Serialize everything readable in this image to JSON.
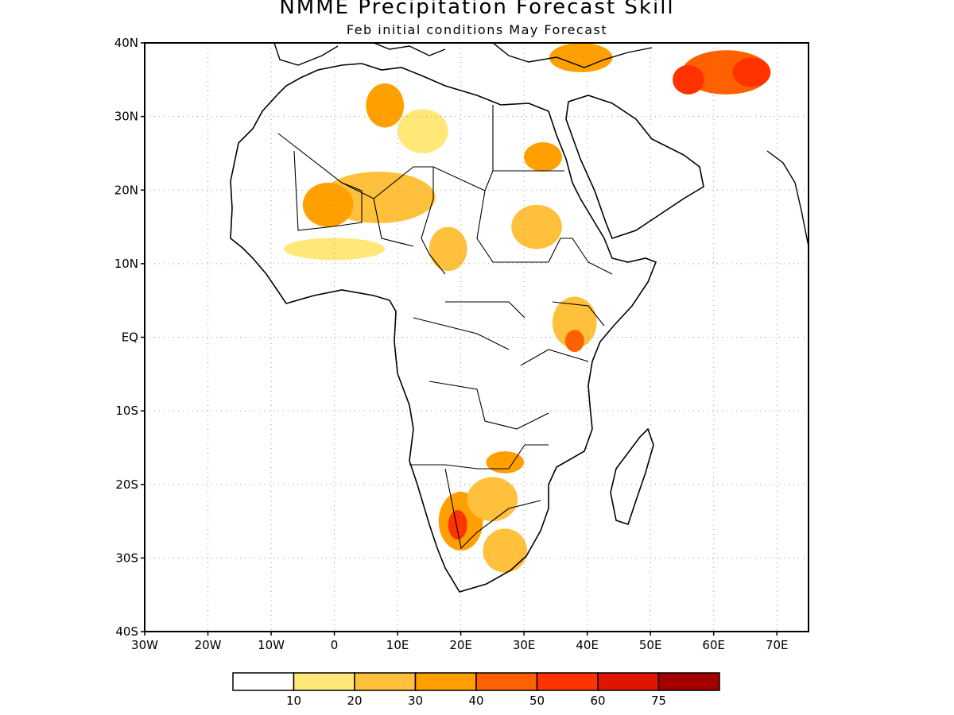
{
  "title": "NMME Precipitation Forecast Skill",
  "subtitle": "Feb initial conditions  May Forecast",
  "map": {
    "lon_range": [
      -30,
      75
    ],
    "lat_range": [
      -40,
      40
    ],
    "lat_ticks": [
      {
        "value": 40,
        "label": "40N"
      },
      {
        "value": 30,
        "label": "30N"
      },
      {
        "value": 20,
        "label": "20N"
      },
      {
        "value": 10,
        "label": "10N"
      },
      {
        "value": 0,
        "label": "EQ"
      },
      {
        "value": -10,
        "label": "10S"
      },
      {
        "value": -20,
        "label": "20S"
      },
      {
        "value": -30,
        "label": "30S"
      },
      {
        "value": -40,
        "label": "40S"
      }
    ],
    "lon_ticks": [
      {
        "value": -30,
        "label": "30W"
      },
      {
        "value": -20,
        "label": "20W"
      },
      {
        "value": -10,
        "label": "10W"
      },
      {
        "value": 0,
        "label": "0"
      },
      {
        "value": 10,
        "label": "10E"
      },
      {
        "value": 20,
        "label": "20E"
      },
      {
        "value": 30,
        "label": "30E"
      },
      {
        "value": 40,
        "label": "40E"
      },
      {
        "value": 50,
        "label": "50E"
      },
      {
        "value": 60,
        "label": "60E"
      },
      {
        "value": 70,
        "label": "70E"
      }
    ],
    "grid": true
  },
  "colorbar": {
    "colors": [
      "#ffffff",
      "#ffe878",
      "#ffc03c",
      "#ffa000",
      "#ff6000",
      "#ff3200",
      "#e11400",
      "#a50000"
    ],
    "labels": [
      "10",
      "20",
      "30",
      "40",
      "50",
      "60",
      "75"
    ]
  },
  "skill_regions": [
    {
      "lon": 7,
      "lat": 19,
      "rx": 9,
      "ry": 3.5,
      "level": 2
    },
    {
      "lon": -1,
      "lat": 18,
      "rx": 4,
      "ry": 3,
      "level": 3
    },
    {
      "lon": 8,
      "lat": 31.5,
      "rx": 3,
      "ry": 3,
      "level": 3
    },
    {
      "lon": 14,
      "lat": 28,
      "rx": 4,
      "ry": 3,
      "level": 1
    },
    {
      "lon": 33,
      "lat": 24.5,
      "rx": 3,
      "ry": 2,
      "level": 3
    },
    {
      "lon": 32,
      "lat": 15,
      "rx": 4,
      "ry": 3,
      "level": 2
    },
    {
      "lon": 18,
      "lat": 12,
      "rx": 3,
      "ry": 3,
      "level": 2
    },
    {
      "lon": 0,
      "lat": 12,
      "rx": 8,
      "ry": 1.5,
      "level": 1
    },
    {
      "lon": 62,
      "lat": 36,
      "rx": 7,
      "ry": 3,
      "level": 4
    },
    {
      "lon": 56,
      "lat": 35,
      "rx": 2.5,
      "ry": 2,
      "level": 5
    },
    {
      "lon": 66,
      "lat": 36,
      "rx": 3,
      "ry": 2,
      "level": 5
    },
    {
      "lon": 39,
      "lat": 38,
      "rx": 5,
      "ry": 2,
      "level": 3
    },
    {
      "lon": 38,
      "lat": 2,
      "rx": 3.5,
      "ry": 3.5,
      "level": 2
    },
    {
      "lon": 38,
      "lat": -0.5,
      "rx": 1.5,
      "ry": 1.5,
      "level": 4
    },
    {
      "lon": 20,
      "lat": -25,
      "rx": 3.5,
      "ry": 4,
      "level": 3
    },
    {
      "lon": 19.5,
      "lat": -25.5,
      "rx": 1.5,
      "ry": 2,
      "level": 5
    },
    {
      "lon": 25,
      "lat": -22,
      "rx": 4,
      "ry": 3,
      "level": 2
    },
    {
      "lon": 27,
      "lat": -29,
      "rx": 3.5,
      "ry": 3,
      "level": 2
    },
    {
      "lon": 27,
      "lat": -17,
      "rx": 3,
      "ry": 1.5,
      "level": 3
    }
  ]
}
